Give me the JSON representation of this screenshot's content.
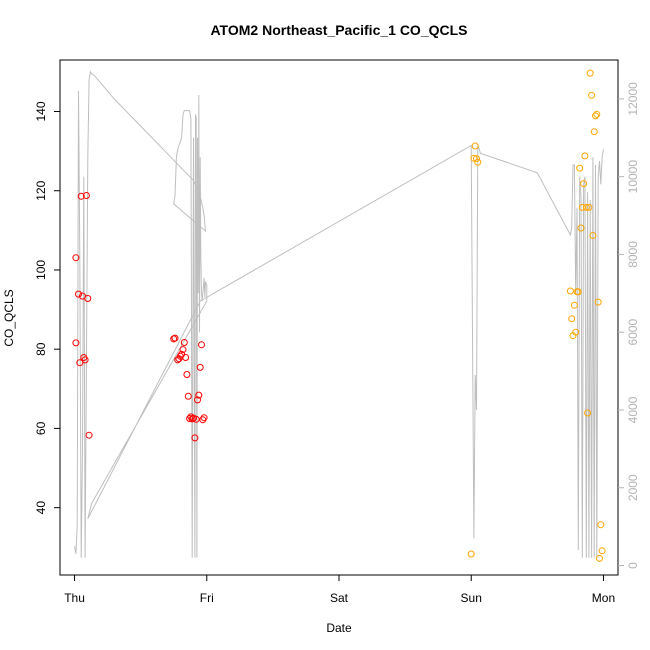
{
  "chart_data": {
    "type": "scatter",
    "title": "ATOM2 Northeast_Pacific_1 CO_QCLS",
    "xlabel": "Date",
    "ylabel": "CO_QCLS",
    "x_ticks": [
      "Thu",
      "Fri",
      "Sat",
      "Sun",
      "Mon"
    ],
    "x_range": [
      -0.11,
      4.11
    ],
    "ylim": [
      23,
      153
    ],
    "y_ticks": [
      40,
      60,
      80,
      100,
      120,
      140
    ],
    "y2lim": [
      -244,
      13000
    ],
    "y2_ticks": [
      0,
      2000,
      4000,
      6000,
      8000,
      10000,
      12000
    ],
    "grid": false,
    "colors": {
      "flight1": "#ff0000",
      "flight2": "#ff0000",
      "flight3": "#ffa500",
      "altitude": "#bebebe",
      "axis": "#000000",
      "axis_right": "#b3b3b3"
    },
    "series": [
      {
        "color": "#ff0000",
        "x": [
          0.01,
          0.01,
          0.03,
          0.04,
          0.05,
          0.06,
          0.07,
          0.08,
          0.09,
          0.1
        ],
        "y": [
          103.1,
          81.6,
          93.9,
          76.6,
          118.6,
          93.4,
          77.9,
          77.3,
          118.8,
          92.8
        ],
        "extra_x": [
          0.11
        ],
        "extra_y": [
          58.3
        ]
      },
      {
        "color": "#ff0000",
        "x": [
          0.75,
          0.76,
          0.78,
          0.79,
          0.8,
          0.81,
          0.82,
          0.83,
          0.84,
          0.85,
          0.86,
          0.87,
          0.88,
          0.89,
          0.9,
          0.91,
          0.92,
          0.93,
          0.94,
          0.95,
          0.96,
          0.97,
          0.98
        ],
        "y": [
          82.6,
          82.8,
          77.3,
          77.6,
          78.2,
          78.7,
          79.9,
          81.7,
          77.9,
          73.6,
          68.1,
          62.5,
          62.9,
          62.4,
          62.6,
          57.6,
          62.3,
          67.2,
          68.4,
          75.4,
          81.1,
          62.2,
          62.7
        ]
      },
      {
        "color": "#ffa500",
        "x": [
          3.0,
          3.02,
          3.03,
          3.04,
          3.05,
          3.75,
          3.76,
          3.77,
          3.78,
          3.79,
          3.8,
          3.81,
          3.82,
          3.83,
          3.84,
          3.85,
          3.86,
          3.87,
          3.88,
          3.89,
          3.9,
          3.91,
          3.92,
          3.93,
          3.94,
          3.95,
          3.96,
          3.97,
          3.98
        ],
        "y": [
          28.3,
          128.2,
          131.3,
          128.1,
          127.2,
          94.7,
          87.7,
          83.4,
          91.1,
          84.3,
          94.5,
          94.5,
          125.7,
          110.6,
          115.8,
          121.8,
          128.8,
          115.8,
          63.9,
          115.8,
          149.7,
          144.1,
          108.7,
          134.9,
          138.9,
          139.3,
          91.9,
          27.2,
          35.7
        ]
      },
      {
        "color": "#ffa500",
        "x": [
          3.99
        ],
        "y": [
          29.1
        ]
      }
    ],
    "altitude_series": {
      "color": "#bebebe",
      "x": [
        0.0,
        0.01,
        0.02,
        0.03,
        0.04,
        0.05,
        0.06,
        0.07,
        0.08,
        0.09,
        0.1,
        0.11,
        0.12,
        0.13,
        0.15,
        0.2,
        0.3,
        0.5,
        0.7,
        0.9,
        0.95,
        0.97,
        0.98,
        0.985,
        0.99,
        0.75,
        0.76,
        0.77,
        0.78,
        0.79,
        0.8,
        0.81,
        0.82,
        0.83,
        0.84,
        0.85,
        0.86,
        0.87,
        0.88,
        0.89,
        0.9,
        0.91,
        0.915,
        0.92,
        0.925,
        0.93,
        0.935,
        0.94,
        0.945,
        0.95,
        0.955,
        0.96,
        0.965,
        0.97,
        0.975,
        0.98,
        0.985,
        0.99,
        1.0,
        1.0,
        0.13,
        0.1,
        0.95,
        3.0,
        3.02,
        3.03,
        3.04,
        3.05,
        3.06,
        3.07,
        3.5,
        3.75,
        3.76,
        3.77,
        3.78,
        3.79,
        3.8,
        3.81,
        3.82,
        3.83,
        3.84,
        3.85,
        3.86,
        3.87,
        3.88,
        3.89,
        3.9,
        3.91,
        3.92,
        3.93,
        3.94,
        3.95,
        3.96,
        3.97,
        3.98,
        3.99,
        4.0
      ],
      "y": [
        500,
        300,
        1000,
        12200,
        8000,
        200,
        3000,
        10000,
        200,
        5000,
        10500,
        12500,
        12700,
        12650,
        12600,
        12400,
        12000,
        11300,
        10600,
        9900,
        9500,
        9200,
        9000,
        8800,
        8600,
        9300,
        9500,
        10500,
        10700,
        10800,
        10900,
        11000,
        11600,
        11700,
        11700,
        11700,
        11700,
        11700,
        11500,
        200,
        11000,
        200,
        11600,
        11500,
        200,
        11000,
        7000,
        12100,
        6000,
        10500,
        8000,
        7000,
        6800,
        7000,
        7200,
        7400,
        6900,
        7300,
        7200,
        6800,
        1600,
        1200,
        6800,
        10800,
        700,
        4900,
        4000,
        10800,
        10700,
        10600,
        10100,
        8500,
        8700,
        10300,
        10300,
        7000,
        9200,
        400,
        10000,
        9500,
        200,
        9800,
        10000,
        200,
        9600,
        200,
        9400,
        200,
        10500,
        200,
        10300,
        200,
        10000,
        10400,
        9800,
        10500,
        10700
      ]
    }
  }
}
